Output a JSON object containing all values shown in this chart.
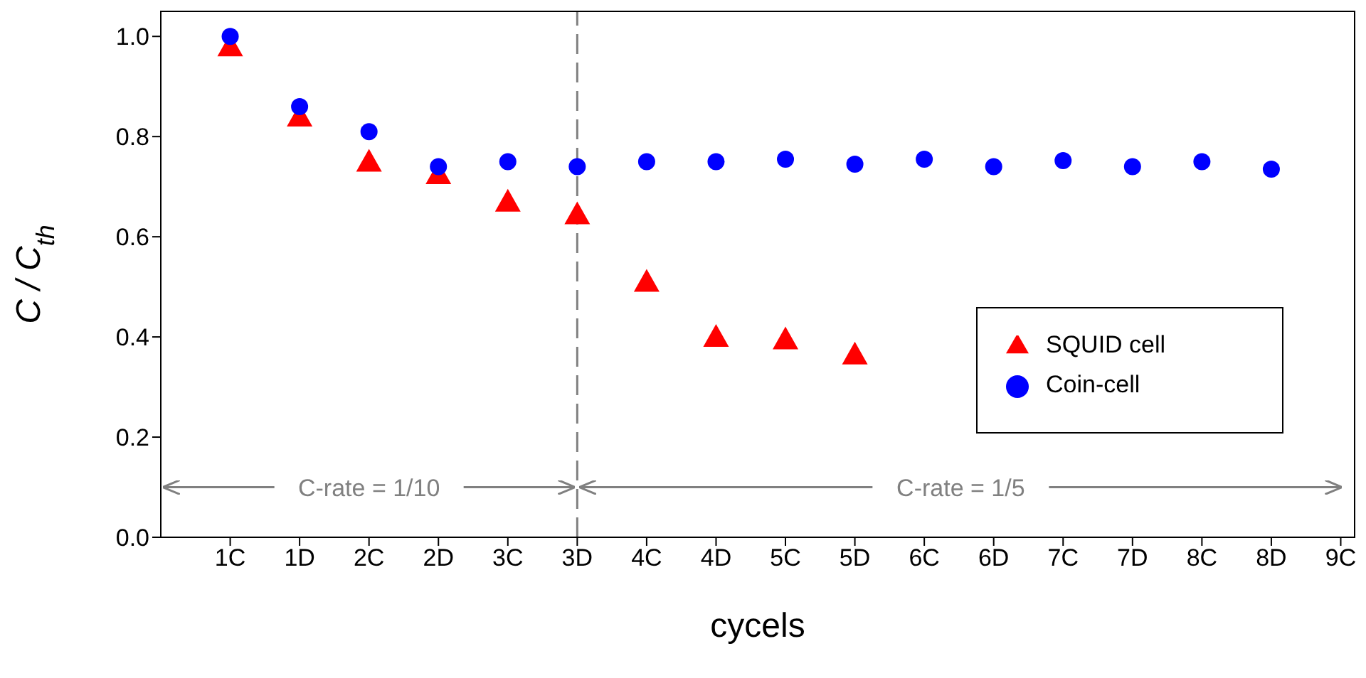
{
  "chart_data": {
    "type": "scatter",
    "xlabel": "cycels",
    "ylabel": "C / C$_{th}$",
    "categories": [
      "1C",
      "1D",
      "2C",
      "2D",
      "3C",
      "3D",
      "4C",
      "4D",
      "5C",
      "5D",
      "6C",
      "6D",
      "7C",
      "7D",
      "8C",
      "8D",
      "9C"
    ],
    "series": [
      {
        "name": "SQUID cell",
        "color": "#ff0000",
        "marker": "triangle",
        "values": [
          0.98,
          0.84,
          0.75,
          0.725,
          0.67,
          0.645,
          0.51,
          0.4,
          0.395,
          0.365,
          null,
          null,
          null,
          null,
          null,
          null,
          null
        ]
      },
      {
        "name": "Coin-cell",
        "color": "#0000ff",
        "marker": "circle",
        "values": [
          1.0,
          0.86,
          0.81,
          0.74,
          0.75,
          0.74,
          0.75,
          0.75,
          0.755,
          0.745,
          0.755,
          0.74,
          0.752,
          0.74,
          0.75,
          0.735,
          null
        ]
      }
    ],
    "ylim": [
      0,
      1.05
    ],
    "yticks": [
      {
        "value": 0,
        "label": "0.0"
      },
      {
        "value": 0.2,
        "label": "0.2"
      },
      {
        "value": 0.4,
        "label": "0.4"
      },
      {
        "value": 0.6,
        "label": "0.6"
      },
      {
        "value": 0.8,
        "label": "0.8"
      },
      {
        "value": 1,
        "label": "1.0"
      }
    ],
    "ref_lines": [
      {
        "axis": "x",
        "value": "3D",
        "color": "#808080",
        "line_style": "dashed"
      }
    ],
    "annotations": [
      {
        "text": "C-rate = 1/10",
        "x": "3D",
        "y": 0.1
      },
      {
        "text": "C-rate = 1/5",
        "x": "3D",
        "y": 0.1
      }
    ],
    "legend": "right",
    "grid": false
  }
}
